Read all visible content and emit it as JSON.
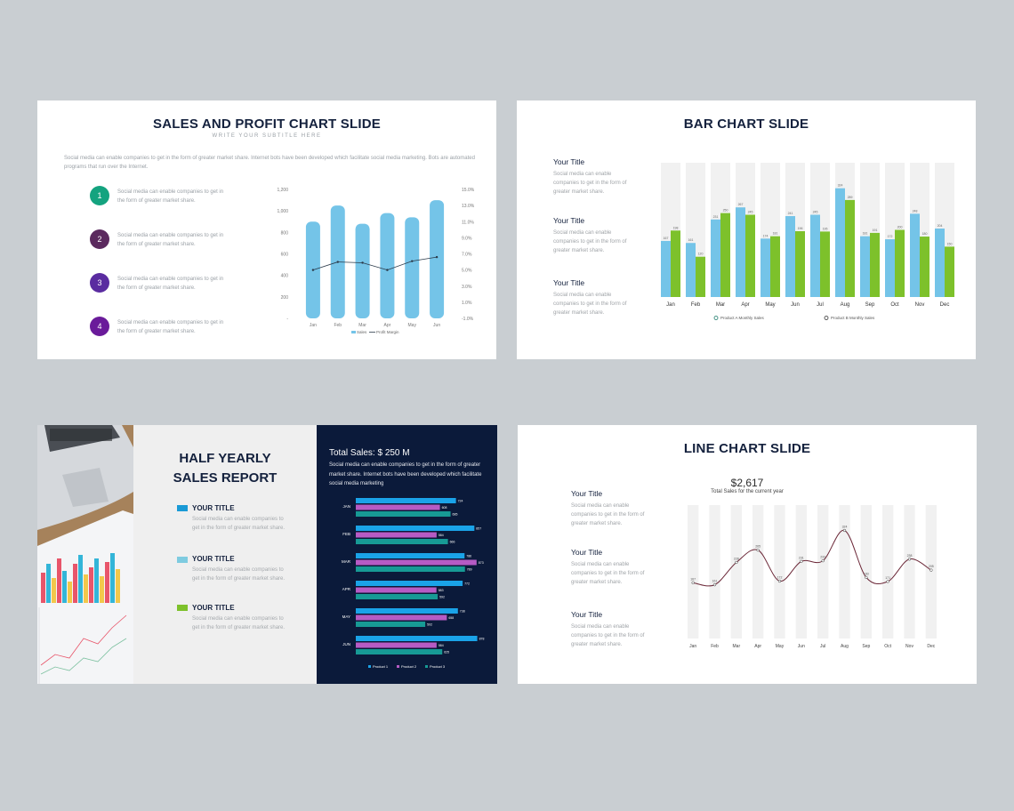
{
  "slide1": {
    "title": "SALES AND PROFIT CHART SLIDE",
    "subtitle": "WRITE YOUR SUBTITLE HERE",
    "paragraph": "Social media can enable companies to get in the form of greater market share. Internet bots have been developed which facilitate social media marketing. Bots are automated programs that run over the Internet.",
    "items": [
      {
        "num": "1",
        "color": "#14a37f",
        "text": "Social media can enable companies to get in the form of greater market share."
      },
      {
        "num": "2",
        "color": "#5b2a5e",
        "text": "Social media can enable companies to get in the form of greater market share."
      },
      {
        "num": "3",
        "color": "#5a2ca0",
        "text": "Social media can enable companies to get in the form of greater market share."
      },
      {
        "num": "4",
        "color": "#6a1b9a",
        "text": "Social media can enable companies to get in the form of greater market share."
      }
    ]
  },
  "slide2": {
    "title": "BAR CHART SLIDE",
    "items": [
      {
        "title": "Your Title",
        "text": "Social media can enable companies to get in the form of greater market share."
      },
      {
        "title": "Your Title",
        "text": "Social media can enable companies to get in the form of greater market share."
      },
      {
        "title": "Your Title",
        "text": "Social media can enable companies to get in the form of greater market share."
      }
    ]
  },
  "slide3": {
    "title_line1": "HALF YEARLY",
    "title_line2": "SALES REPORT",
    "items": [
      {
        "label": "YOUR TITLE",
        "color": "#1a9ad6",
        "text": "Social media can enable companies to get in the form of greater market share."
      },
      {
        "label": "YOUR TITLE",
        "color": "#7ecbe0",
        "text": "Social media can enable companies to get in the form of greater market share."
      },
      {
        "label": "YOUR TITLE",
        "color": "#7dc12b",
        "text": "Social media can enable companies to get in the form of greater market share."
      }
    ],
    "total_sales": "Total Sales: $ 250 M",
    "description": "Social media can enable companies to get in the form of greater market share. Internet bots have been developed which facilitate social media marketing"
  },
  "slide4": {
    "title": "LINE CHART SLIDE",
    "total": "$2,617",
    "total_label": "Total Sales for the current year",
    "items": [
      {
        "title": "Your Title",
        "text": "Social media can enable companies to get in the form of greater market share."
      },
      {
        "title": "Your Title",
        "text": "Social media can enable companies to get in the form of greater market share."
      },
      {
        "title": "Your Title",
        "text": "Social media can enable companies to get in the form of greater market share."
      }
    ]
  },
  "chart_data": [
    {
      "type": "bar",
      "chart": "sales-profit",
      "categories": [
        "Jan",
        "Feb",
        "Mar",
        "Apr",
        "May",
        "Jun"
      ],
      "series": [
        {
          "name": "Sales",
          "type": "bar",
          "axis": "left",
          "color": "#74c4e8",
          "values": [
            900,
            1050,
            880,
            980,
            940,
            1100
          ]
        },
        {
          "name": "Profit Margin",
          "type": "line",
          "axis": "right",
          "color": "#2b3a4a",
          "values": [
            5.0,
            6.0,
            5.9,
            5.0,
            6.1,
            6.6
          ]
        }
      ],
      "y_ticks": [
        "-",
        "200",
        "400",
        "600",
        "800",
        "1,000",
        "1,200"
      ],
      "ylim": [
        0,
        1200
      ],
      "y2_ticks": [
        "-1.0%",
        "1.0%",
        "3.0%",
        "5.0%",
        "7.0%",
        "9.0%",
        "11.0%",
        "13.0%",
        "15.0%"
      ],
      "y2lim": [
        -1,
        15
      ],
      "legend": "bottom"
    },
    {
      "type": "bar",
      "chart": "monthly-sales",
      "categories": [
        "Jan",
        "Feb",
        "Mar",
        "Apr",
        "May",
        "Jun",
        "Jul",
        "Aug",
        "Sep",
        "Oct",
        "Nov",
        "Dec"
      ],
      "series": [
        {
          "name": "Product A Monthly Sales",
          "color": "#74c4e8",
          "values": [
            167,
            161,
            231,
            267,
            174,
            241,
            245,
            324,
            181,
            172,
            248,
            204
          ]
        },
        {
          "name": "Product B Monthly Sales",
          "color": "#7dc12b",
          "values": [
            198,
            120,
            250,
            245,
            181,
            196,
            195,
            289,
            191,
            200,
            180,
            150
          ]
        }
      ],
      "ylim": [
        0,
        400
      ],
      "legend": "bottom"
    },
    {
      "type": "bar",
      "chart": "half-yearly",
      "orientation": "horizontal",
      "categories": [
        "JAN",
        "FEB",
        "MAR",
        "APR",
        "MAY",
        "JUN"
      ],
      "series": [
        {
          "name": "Product 1",
          "color": "#1aa3e8",
          "values": [
            724,
            857,
            786,
            772,
            738,
            878
          ]
        },
        {
          "name": "Product 2",
          "color": "#b65bc4",
          "values": [
            608,
            584,
            873,
            583,
            658,
            584
          ]
        },
        {
          "name": "Product 3",
          "color": "#179a95",
          "values": [
            685,
            666,
            789,
            592,
            502,
            625
          ]
        }
      ],
      "xlim": [
        0,
        1000
      ],
      "legend": "bottom"
    },
    {
      "type": "line",
      "chart": "line-sales",
      "categories": [
        "Jan",
        "Feb",
        "Mar",
        "Apr",
        "May",
        "Jun",
        "Jul",
        "Aug",
        "Sep",
        "Oct",
        "Nov",
        "Dec"
      ],
      "series": [
        {
          "color": "#6b2737",
          "values": [
            167,
            161,
            228,
            265,
            172,
            231,
            233,
            324,
            183,
            171,
            238,
            205
          ]
        }
      ],
      "ylim": [
        0,
        400
      ]
    }
  ]
}
